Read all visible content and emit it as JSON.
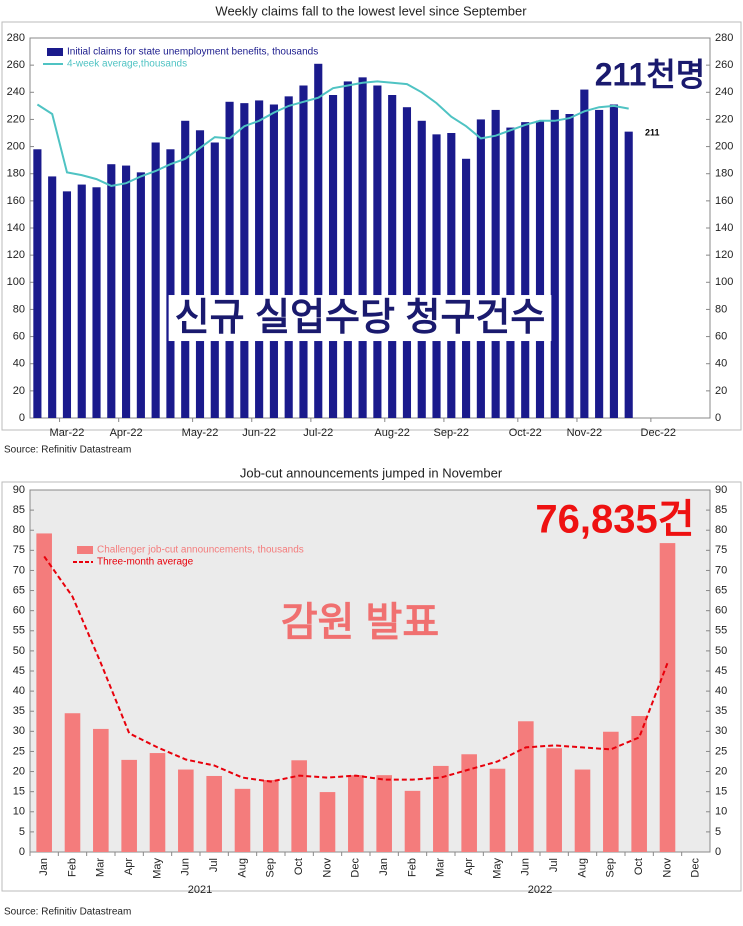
{
  "chart_data": [
    {
      "type": "bar",
      "title": "Weekly claims fall to the lowest level since September",
      "source": "Source: Refinitiv Datastream",
      "background": "#ffffff",
      "categories": [
        null,
        null,
        "Mar-22",
        null,
        null,
        null,
        "Apr-22",
        null,
        null,
        null,
        null,
        "May-22",
        null,
        null,
        null,
        "Jun-22",
        null,
        null,
        null,
        "Jul-22",
        null,
        null,
        null,
        null,
        "Aug-22",
        null,
        null,
        null,
        "Sep-22",
        null,
        null,
        null,
        null,
        "Oct-22",
        null,
        null,
        null,
        "Nov-22",
        null,
        null,
        null,
        null,
        "Dec-22",
        null,
        null,
        null
      ],
      "series": [
        {
          "name": "Initial claims for state unemployment benefits,  thousands",
          "type": "bar",
          "color": "#1a1a8c",
          "values": [
            198,
            178,
            167,
            172,
            170,
            187,
            186,
            181,
            203,
            198,
            219,
            212,
            203,
            233,
            232,
            234,
            231,
            237,
            245,
            261,
            238,
            248,
            251,
            245,
            238,
            229,
            219,
            209,
            210,
            191,
            220,
            227,
            214,
            218,
            219,
            227,
            224,
            242,
            227,
            231,
            211,
            null,
            null,
            null,
            null,
            null
          ]
        },
        {
          "name": "4-week average,thousands",
          "type": "line",
          "color": "#4fc3c3",
          "dash": false,
          "values": [
            231,
            224,
            181,
            179,
            176,
            171,
            173,
            178,
            182,
            187,
            191,
            199,
            207,
            206,
            215,
            219,
            225,
            230,
            233,
            236,
            243,
            245,
            247,
            248,
            247,
            246,
            240,
            232,
            222,
            215,
            206,
            208,
            212,
            216,
            219,
            219,
            221,
            226,
            229,
            230,
            228,
            null,
            null,
            null,
            null,
            null
          ]
        }
      ],
      "ylim": [
        0,
        280
      ],
      "yticks": [
        0,
        20,
        40,
        60,
        80,
        100,
        120,
        140,
        160,
        180,
        200,
        220,
        240,
        260,
        280
      ],
      "y2lim": [
        0,
        280
      ],
      "y2ticks": [
        0,
        20,
        40,
        60,
        80,
        100,
        120,
        140,
        160,
        180,
        200,
        220,
        240,
        260,
        280
      ],
      "grid": false,
      "annotations": [
        {
          "text": "211"
        },
        {
          "text": "211천명"
        },
        {
          "text": "신규 실업수당 청구건수"
        }
      ]
    },
    {
      "type": "bar",
      "title": "Job-cut announcements jumped in November",
      "source": "Source: Refinitiv Datastream",
      "background": "#ebebeb",
      "categories": [
        "Jan",
        "Feb",
        "Mar",
        "Apr",
        "May",
        "Jun",
        "Jul",
        "Aug",
        "Sep",
        "Oct",
        "Nov",
        "Dec",
        "Jan",
        "Feb",
        "Mar",
        "Apr",
        "May",
        "Jun",
        "Jul",
        "Aug",
        "Sep",
        "Oct",
        "Nov",
        "Dec"
      ],
      "groups": [
        "2021",
        "2022"
      ],
      "series": [
        {
          "name": "Challenger job-cut announcements, thousands",
          "type": "bar",
          "color": "#f47c7c",
          "values": [
            79.2,
            34.5,
            30.6,
            22.9,
            24.6,
            20.5,
            18.9,
            15.7,
            17.9,
            22.8,
            14.9,
            19.1,
            19.1,
            15.2,
            21.4,
            24.3,
            20.7,
            32.5,
            25.8,
            20.5,
            29.9,
            33.8,
            76.8,
            null
          ]
        },
        {
          "name": "Three-month average",
          "type": "line",
          "color": "#e8000b",
          "dash": true,
          "values": [
            73.5,
            63.5,
            47,
            29.5,
            26,
            23,
            21.5,
            18.5,
            17.5,
            19,
            18.5,
            19,
            18,
            18,
            18.5,
            20.5,
            22.5,
            26,
            26.5,
            26,
            25.5,
            28.5,
            47,
            null
          ]
        }
      ],
      "ylim": [
        0,
        90
      ],
      "yticks": [
        0,
        5,
        10,
        15,
        20,
        25,
        30,
        35,
        40,
        45,
        50,
        55,
        60,
        65,
        70,
        75,
        80,
        85,
        90
      ],
      "y2lim": [
        0,
        90
      ],
      "y2ticks": [
        0,
        5,
        10,
        15,
        20,
        25,
        30,
        35,
        40,
        45,
        50,
        55,
        60,
        65,
        70,
        75,
        80,
        85,
        90
      ],
      "grid": false,
      "annotations": [
        {
          "text": "76,835건"
        },
        {
          "text": "감원 발표"
        }
      ]
    }
  ]
}
